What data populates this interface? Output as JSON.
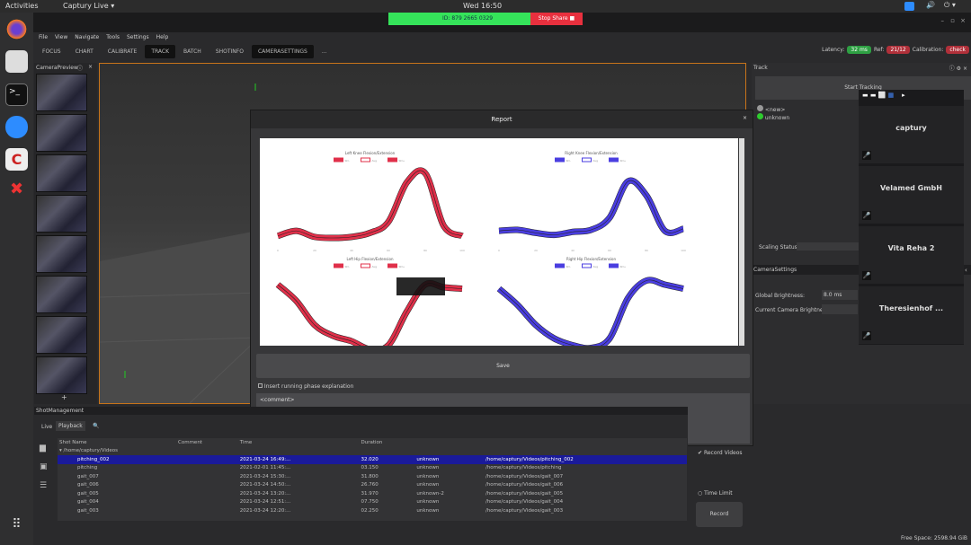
{
  "topbar": {
    "activities": "Activities",
    "app": "Captury Live ▾",
    "clock": "Wed 16:50"
  },
  "zoom": {
    "meeting_id": "ID: 879 2665 0329",
    "stop_share": "Stop Share ■"
  },
  "menu": [
    "File",
    "View",
    "Navigate",
    "Tools",
    "Settings",
    "Help"
  ],
  "tabs": [
    {
      "label": "FOCUS"
    },
    {
      "label": "CHART"
    },
    {
      "label": "CALIBRATE"
    },
    {
      "label": "TRACK",
      "active": true
    },
    {
      "label": "BATCH"
    },
    {
      "label": "SHOTINFO"
    },
    {
      "label": "CAMERASETTINGS",
      "active": true
    },
    {
      "label": "..."
    }
  ],
  "status": {
    "latency_label": "Latency:",
    "latency": "32 ms",
    "ref_label": "Ref:",
    "ref": "21/12",
    "calib_label": "Calibration:",
    "calib": "check",
    "ok_color": "#2ea043",
    "bad_color": "#b0303a"
  },
  "camera_preview": {
    "title": "CameraPreview",
    "add": "+"
  },
  "track": {
    "title": "Track",
    "start_button": "Start Tracking",
    "actors": [
      {
        "name": "<new>",
        "color": "#999"
      },
      {
        "name": "unknown",
        "color": "#2ecc2e"
      }
    ],
    "scaling_label": "Scaling Status:"
  },
  "camera_settings": {
    "title": "CameraSettings",
    "global_brightness_label": "Global Brightness:",
    "global_brightness": "8.0 ms",
    "current_brightness_label": "Current Camera Brightness:"
  },
  "report": {
    "title": "Report",
    "save": "Save",
    "checkbox_label": "Insert running phase explanation",
    "comment": "<comment>"
  },
  "chart_data": [
    {
      "type": "line",
      "title": "Left Knee Flexion/Extension",
      "legend": [
        "SD-",
        "Avg",
        "SD+"
      ],
      "color": "#e0304a",
      "x": [
        0,
        10,
        20,
        30,
        40,
        50,
        60,
        70,
        80,
        90,
        100
      ],
      "values": [
        0,
        5,
        -1,
        -2,
        -1,
        3,
        14,
        53,
        62,
        10,
        0
      ],
      "ylim": [
        -10,
        70
      ]
    },
    {
      "type": "line",
      "title": "Right Knee Flexion/Extension",
      "legend": [
        "SD-",
        "Avg",
        "SD+"
      ],
      "color": "#4a3ee0",
      "x": [
        0,
        10,
        20,
        30,
        40,
        50,
        60,
        70,
        80,
        90,
        100
      ],
      "values": [
        5,
        6,
        3,
        1,
        4,
        6,
        18,
        54,
        40,
        5,
        7
      ],
      "ylim": [
        -10,
        70
      ]
    },
    {
      "type": "line",
      "title": "Left Hip Flexion/Extension",
      "legend": [
        "SD-",
        "Avg",
        "SD+"
      ],
      "color": "#e0304a",
      "x": [
        0,
        10,
        20,
        30,
        40,
        50,
        60,
        70,
        80,
        90,
        100
      ],
      "values": [
        30,
        18,
        0,
        -8,
        -12,
        -18,
        -15,
        10,
        30,
        28,
        27
      ],
      "ylim": [
        -20,
        40
      ]
    },
    {
      "type": "line",
      "title": "Right Hip Flexion/Extension",
      "legend": [
        "SD-",
        "Avg",
        "SD+"
      ],
      "color": "#4a3ee0",
      "x": [
        0,
        10,
        20,
        30,
        40,
        50,
        60,
        70,
        80,
        90,
        100
      ],
      "values": [
        27,
        15,
        0,
        -10,
        -15,
        -17,
        -10,
        20,
        33,
        30,
        27
      ],
      "ylim": [
        -20,
        40
      ]
    }
  ],
  "shots": {
    "title": "ShotManagement",
    "tabs": [
      "Live",
      "Playback"
    ],
    "columns": [
      "Shot Name",
      "Comment",
      "Time",
      "Duration"
    ],
    "folder": "/home/captury/Videos",
    "rows": [
      [
        "pitching_002",
        "2021-03-24 16:49:...",
        "32.020",
        "unknown",
        "/home/captury/Videos/pitching_002"
      ],
      [
        "pitching",
        "2021-02-01 11:45:...",
        "03.150",
        "unknown",
        "/home/captury/Videos/pitching"
      ],
      [
        "gait_007",
        "2021-03-24 15:30:...",
        "31.800",
        "unknown",
        "/home/captury/Videos/gait_007"
      ],
      [
        "gait_006",
        "2021-03-24 14:50:...",
        "26.760",
        "unknown",
        "/home/captury/Videos/gait_006"
      ],
      [
        "gait_005",
        "2021-03-24 13:20:...",
        "31.970",
        "unknown-2",
        "/home/captury/Videos/gait_005"
      ],
      [
        "gait_004",
        "2021-03-24 12:51:...",
        "07.750",
        "unknown",
        "/home/captury/Videos/gait_004"
      ],
      [
        "gait_003",
        "2021-03-24 12:20:...",
        "02.250",
        "unknown",
        "/home/captury/Videos/gait_003"
      ]
    ]
  },
  "record": {
    "record_videos": "Record Videos",
    "time_limit": "Time Limit",
    "record": "Record"
  },
  "gallery": [
    "captury",
    "Velamed GmbH",
    "Vita Reha 2",
    "Theresienhof ..."
  ],
  "footer": {
    "free_space": "Free Space: 2598.94 GiB"
  }
}
